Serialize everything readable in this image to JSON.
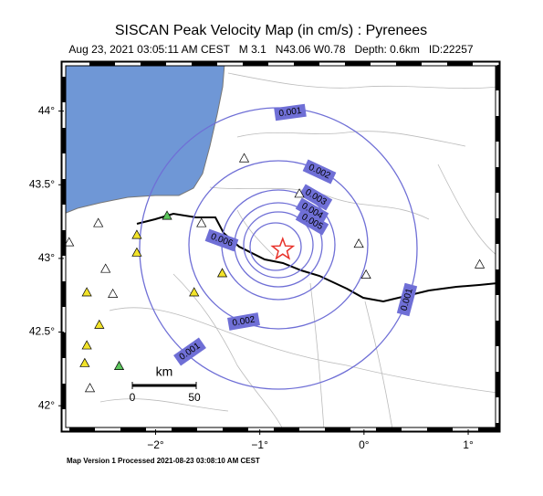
{
  "title": "SISCAN Peak Velocity Map (in cm/s) : Pyrenees",
  "subtitle": "Aug 23, 2021 03:05:11 AM CEST   M 3.1   N43.06 W0.78   Depth: 0.6km   ID:22257",
  "footer": "Map Version 1 Processed 2021-08-23 03:08:10 AM CEST",
  "map": {
    "xlim": [
      -2.88,
      1.28
    ],
    "ylim": [
      41.84,
      44.32
    ],
    "xticks": [
      {
        "value": -2,
        "label": "−2°"
      },
      {
        "value": -1,
        "label": "−1°"
      },
      {
        "value": 0,
        "label": "0°"
      },
      {
        "value": 1,
        "label": "1°"
      }
    ],
    "yticks": [
      {
        "value": 42,
        "label": "42°"
      },
      {
        "value": 42.5,
        "label": "42.5°"
      },
      {
        "value": 43,
        "label": "43°"
      },
      {
        "value": 43.5,
        "label": "43.5°"
      },
      {
        "value": 44,
        "label": "44°"
      }
    ],
    "epicenter": {
      "lon": -0.78,
      "lat": 43.06,
      "color": "#e8322a"
    },
    "contour_labels": [
      "0.001",
      "0.002",
      "0.003",
      "0.004",
      "0.005",
      "0.006",
      "0.002",
      "0.001",
      "0.001"
    ],
    "scale_bar": {
      "unit": "km",
      "labels": [
        "0",
        "50"
      ]
    },
    "stations": [
      {
        "lon": -2.83,
        "lat": 43.11,
        "color": "#ffffff"
      },
      {
        "lon": -2.55,
        "lat": 43.24,
        "color": "#ffffff"
      },
      {
        "lon": -2.48,
        "lat": 42.93,
        "color": "#ffffff"
      },
      {
        "lon": -2.41,
        "lat": 42.76,
        "color": "#ffffff"
      },
      {
        "lon": -2.63,
        "lat": 42.12,
        "color": "#ffffff"
      },
      {
        "lon": -1.56,
        "lat": 43.24,
        "color": "#ffffff"
      },
      {
        "lon": -1.15,
        "lat": 43.68,
        "color": "#ffffff"
      },
      {
        "lon": -0.62,
        "lat": 43.44,
        "color": "#ffffff"
      },
      {
        "lon": -0.05,
        "lat": 43.1,
        "color": "#ffffff"
      },
      {
        "lon": 0.02,
        "lat": 42.89,
        "color": "#ffffff"
      },
      {
        "lon": 1.11,
        "lat": 42.96,
        "color": "#ffffff"
      },
      {
        "lon": -2.18,
        "lat": 43.16,
        "color": "#f2e32a"
      },
      {
        "lon": -2.18,
        "lat": 43.04,
        "color": "#f2e32a"
      },
      {
        "lon": -2.66,
        "lat": 42.77,
        "color": "#f2e32a"
      },
      {
        "lon": -2.54,
        "lat": 42.55,
        "color": "#f2e32a"
      },
      {
        "lon": -2.66,
        "lat": 42.41,
        "color": "#f2e32a"
      },
      {
        "lon": -2.68,
        "lat": 42.29,
        "color": "#f2e32a"
      },
      {
        "lon": -1.36,
        "lat": 42.9,
        "color": "#f2e32a"
      },
      {
        "lon": -1.63,
        "lat": 42.77,
        "color": "#f2e32a"
      },
      {
        "lon": -1.89,
        "lat": 43.29,
        "color": "#5cc65c"
      },
      {
        "lon": -2.35,
        "lat": 42.27,
        "color": "#5cc65c"
      }
    ]
  }
}
